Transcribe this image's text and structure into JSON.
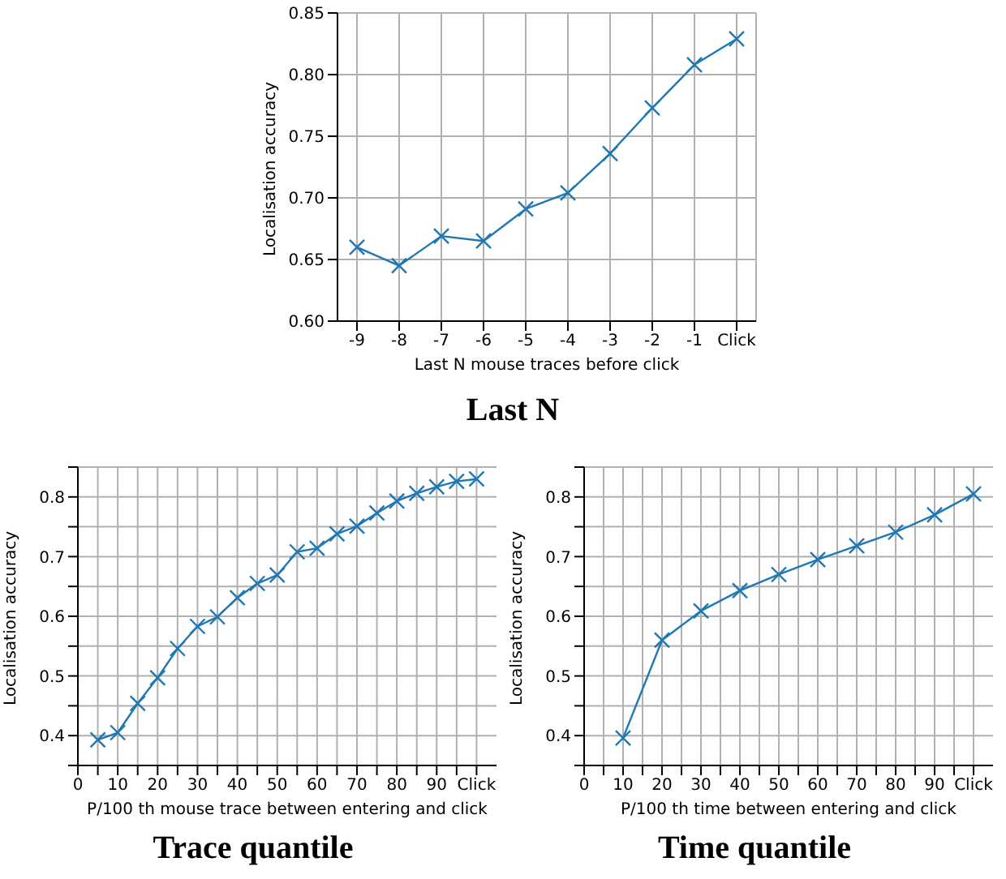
{
  "chart_data": [
    {
      "type": "line",
      "title": "Last N",
      "xlabel": "Last N mouse traces before click",
      "ylabel": "Localisation accuracy",
      "categories": [
        "-9",
        "-8",
        "-7",
        "-6",
        "-5",
        "-4",
        "-3",
        "-2",
        "-1",
        "Click"
      ],
      "series": [
        {
          "color": "#1f77b4",
          "values": [
            0.66,
            0.645,
            0.669,
            0.665,
            0.691,
            0.704,
            0.736,
            0.773,
            0.808,
            0.829
          ]
        }
      ],
      "ylim": [
        0.6,
        0.85
      ],
      "yticks": [
        {
          "value": 0.6,
          "label": "0.60"
        },
        0.65,
        {
          "value": 0.7,
          "label": "0.70"
        },
        0.75,
        {
          "value": 0.8,
          "label": "0.80"
        },
        0.85
      ],
      "grid": true,
      "marker": "cross"
    },
    {
      "type": "line",
      "title": "Trace quantile",
      "xlabel": "P/100 th mouse trace between entering and click",
      "ylabel": "Localisation accuracy",
      "x": [
        5,
        10,
        15,
        20,
        25,
        30,
        35,
        40,
        45,
        50,
        55,
        60,
        65,
        70,
        75,
        80,
        85,
        90,
        95,
        100
      ],
      "series": [
        {
          "color": "#1f77b4",
          "values": [
            0.393,
            0.405,
            0.454,
            0.497,
            0.546,
            0.583,
            0.599,
            0.631,
            0.655,
            0.669,
            0.708,
            0.714,
            0.738,
            0.751,
            0.773,
            0.793,
            0.806,
            0.817,
            0.826,
            0.83
          ]
        }
      ],
      "xlim": [
        0,
        105
      ],
      "xticks": [
        0,
        {
          "value": 5,
          "label": null
        },
        10,
        {
          "value": 15,
          "label": null
        },
        20,
        {
          "value": 25,
          "label": null
        },
        30,
        {
          "value": 35,
          "label": null
        },
        40,
        {
          "value": 45,
          "label": null
        },
        50,
        {
          "value": 55,
          "label": null
        },
        60,
        {
          "value": 65,
          "label": null
        },
        70,
        {
          "value": 75,
          "label": null
        },
        80,
        {
          "value": 85,
          "label": null
        },
        90,
        {
          "value": 95,
          "label": null
        },
        {
          "value": 100,
          "label": "Click"
        }
      ],
      "ylim": [
        0.35,
        0.85
      ],
      "yticks": [
        {
          "value": 0.35,
          "label": null
        },
        0.4,
        {
          "value": 0.45,
          "label": null
        },
        0.5,
        {
          "value": 0.55,
          "label": null
        },
        0.6,
        {
          "value": 0.65,
          "label": null
        },
        0.7,
        {
          "value": 0.75,
          "label": null
        },
        0.8,
        {
          "value": 0.85,
          "label": null
        }
      ],
      "grid": true,
      "marker": "cross"
    },
    {
      "type": "line",
      "title": "Time quantile",
      "xlabel": "P/100 th time between entering and click",
      "ylabel": "Localisation accuracy",
      "x": [
        10,
        20,
        30,
        40,
        50,
        60,
        70,
        80,
        90,
        100
      ],
      "series": [
        {
          "color": "#1f77b4",
          "values": [
            0.396,
            0.56,
            0.609,
            0.643,
            0.67,
            0.695,
            0.718,
            0.741,
            0.77,
            0.805
          ]
        }
      ],
      "xlim": [
        0,
        105
      ],
      "xticks": [
        0,
        {
          "value": 5,
          "label": null
        },
        10,
        {
          "value": 15,
          "label": null
        },
        20,
        {
          "value": 25,
          "label": null
        },
        30,
        {
          "value": 35,
          "label": null
        },
        40,
        {
          "value": 45,
          "label": null
        },
        50,
        {
          "value": 55,
          "label": null
        },
        60,
        {
          "value": 65,
          "label": null
        },
        70,
        {
          "value": 75,
          "label": null
        },
        80,
        {
          "value": 85,
          "label": null
        },
        90,
        {
          "value": 95,
          "label": null
        },
        {
          "value": 100,
          "label": "Click"
        }
      ],
      "ylim": [
        0.35,
        0.85
      ],
      "yticks": [
        {
          "value": 0.35,
          "label": null
        },
        0.4,
        {
          "value": 0.45,
          "label": null
        },
        0.5,
        {
          "value": 0.55,
          "label": null
        },
        0.6,
        {
          "value": 0.65,
          "label": null
        },
        0.7,
        {
          "value": 0.75,
          "label": null
        },
        0.8,
        {
          "value": 0.85,
          "label": null
        }
      ],
      "grid": true,
      "marker": "cross"
    }
  ]
}
